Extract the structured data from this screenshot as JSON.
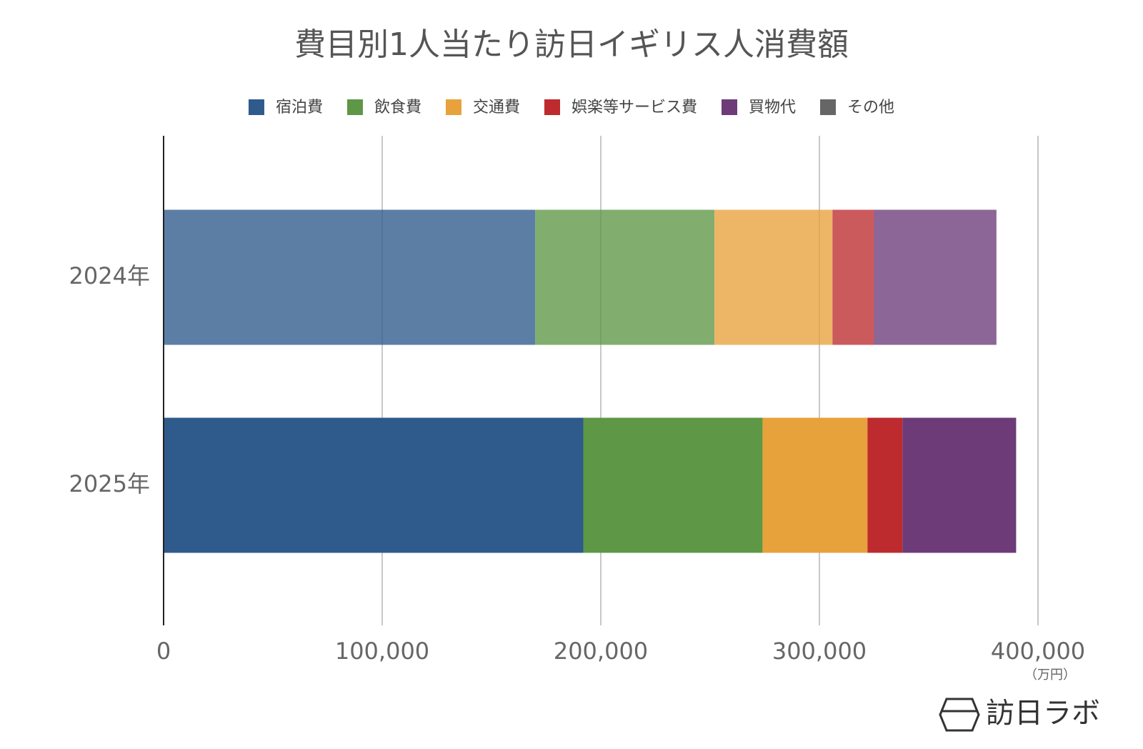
{
  "chart_data": {
    "type": "stacked-bar-horizontal",
    "title": "費目別1人当たり訪日イギリス人消費額",
    "categories": [
      "2024年",
      "2025年"
    ],
    "category_opacity": [
      0.78,
      1
    ],
    "series": [
      {
        "name": "宿泊費",
        "color": "#2e5a8c",
        "values": [
          170000,
          192000
        ]
      },
      {
        "name": "飲食費",
        "color": "#5e9746",
        "values": [
          82000,
          82000
        ]
      },
      {
        "name": "交通費",
        "color": "#e8a23b",
        "values": [
          54000,
          48000
        ]
      },
      {
        "name": "娯楽等サービス費",
        "color": "#bd2b2e",
        "values": [
          19000,
          16000
        ]
      },
      {
        "name": "買物代",
        "color": "#6c3b78",
        "values": [
          56000,
          52000
        ]
      },
      {
        "name": "その他",
        "color": "#666666",
        "values": [
          0,
          0
        ]
      }
    ],
    "xlim": [
      0,
      400000
    ],
    "xticks": [
      0,
      {
        "value": 100000,
        "label": "100,000"
      },
      {
        "value": 200000,
        "label": "200,000"
      },
      {
        "value": 300000,
        "label": "300,000"
      },
      {
        "value": 400000,
        "label": "400,000"
      }
    ],
    "x_unit": "（万円）",
    "grid": true,
    "legend": "top",
    "watermark": "訪日ラボ"
  }
}
